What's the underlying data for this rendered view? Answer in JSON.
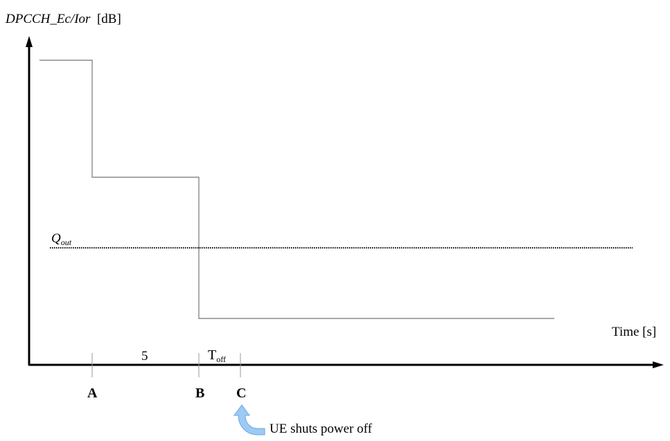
{
  "diagram": {
    "y_axis_title_italic": "DPCCH_Ec/Ior",
    "y_axis_unit": "[dB]",
    "x_axis_title": "Time [s]",
    "threshold_label": "Q",
    "threshold_sub": "out",
    "interval_label": "5",
    "toff_label": "T",
    "toff_sub": "off",
    "tick_labels": [
      "A",
      "B",
      "C"
    ],
    "annotation": "UE shuts power off",
    "arrow_color": "#9ccaf4",
    "arrow_stroke": "#6aa7dd"
  }
}
